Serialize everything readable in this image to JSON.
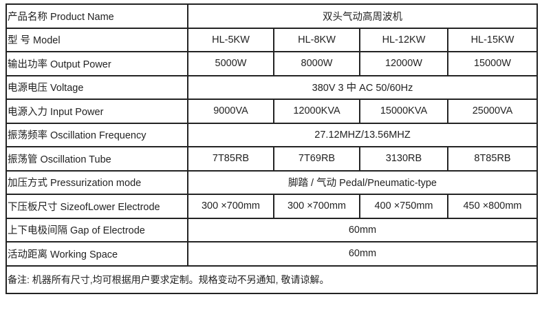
{
  "rows": [
    {
      "label": "产品名称 Product Name",
      "span": "双头气动高周波机"
    },
    {
      "label": "型 号 Model",
      "values": [
        "HL-5KW",
        "HL-8KW",
        "HL-12KW",
        "HL-15KW"
      ]
    },
    {
      "label": "输出功率 Output Power",
      "values": [
        "5000W",
        "8000W",
        "12000W",
        "15000W"
      ]
    },
    {
      "label": "电源电压 Voltage",
      "span": "380V 3 中 AC 50/60Hz"
    },
    {
      "label": "电源入力   Input Power",
      "values": [
        "9000VA",
        "12000KVA",
        "15000KVA",
        "25000VA"
      ]
    },
    {
      "label": "振荡频率 Oscillation Frequency",
      "span": "27.12MHZ/13.56MHZ"
    },
    {
      "label": "振荡管 Oscillation Tube",
      "values": [
        "7T85RB",
        "7T69RB",
        "3130RB",
        "8T85RB"
      ]
    },
    {
      "label": "加压方式  Pressurization mode",
      "span": "脚踏 / 气动 Pedal/Pneumatic-type"
    },
    {
      "label": "下压板尺寸 SizeofLower Electrode",
      "values": [
        "300 ×700mm",
        "300 ×700mm",
        "400 ×750mm",
        "450 ×800mm"
      ]
    },
    {
      "label": "上下电极间隔 Gap of Electrode",
      "span": "60mm"
    },
    {
      "label": "活动距离 Working Space",
      "span": "60mm"
    }
  ],
  "note": "备注:  机器所有尺寸,均可根据用户要求定制。规格变动不另通知,  敬请谅解。"
}
